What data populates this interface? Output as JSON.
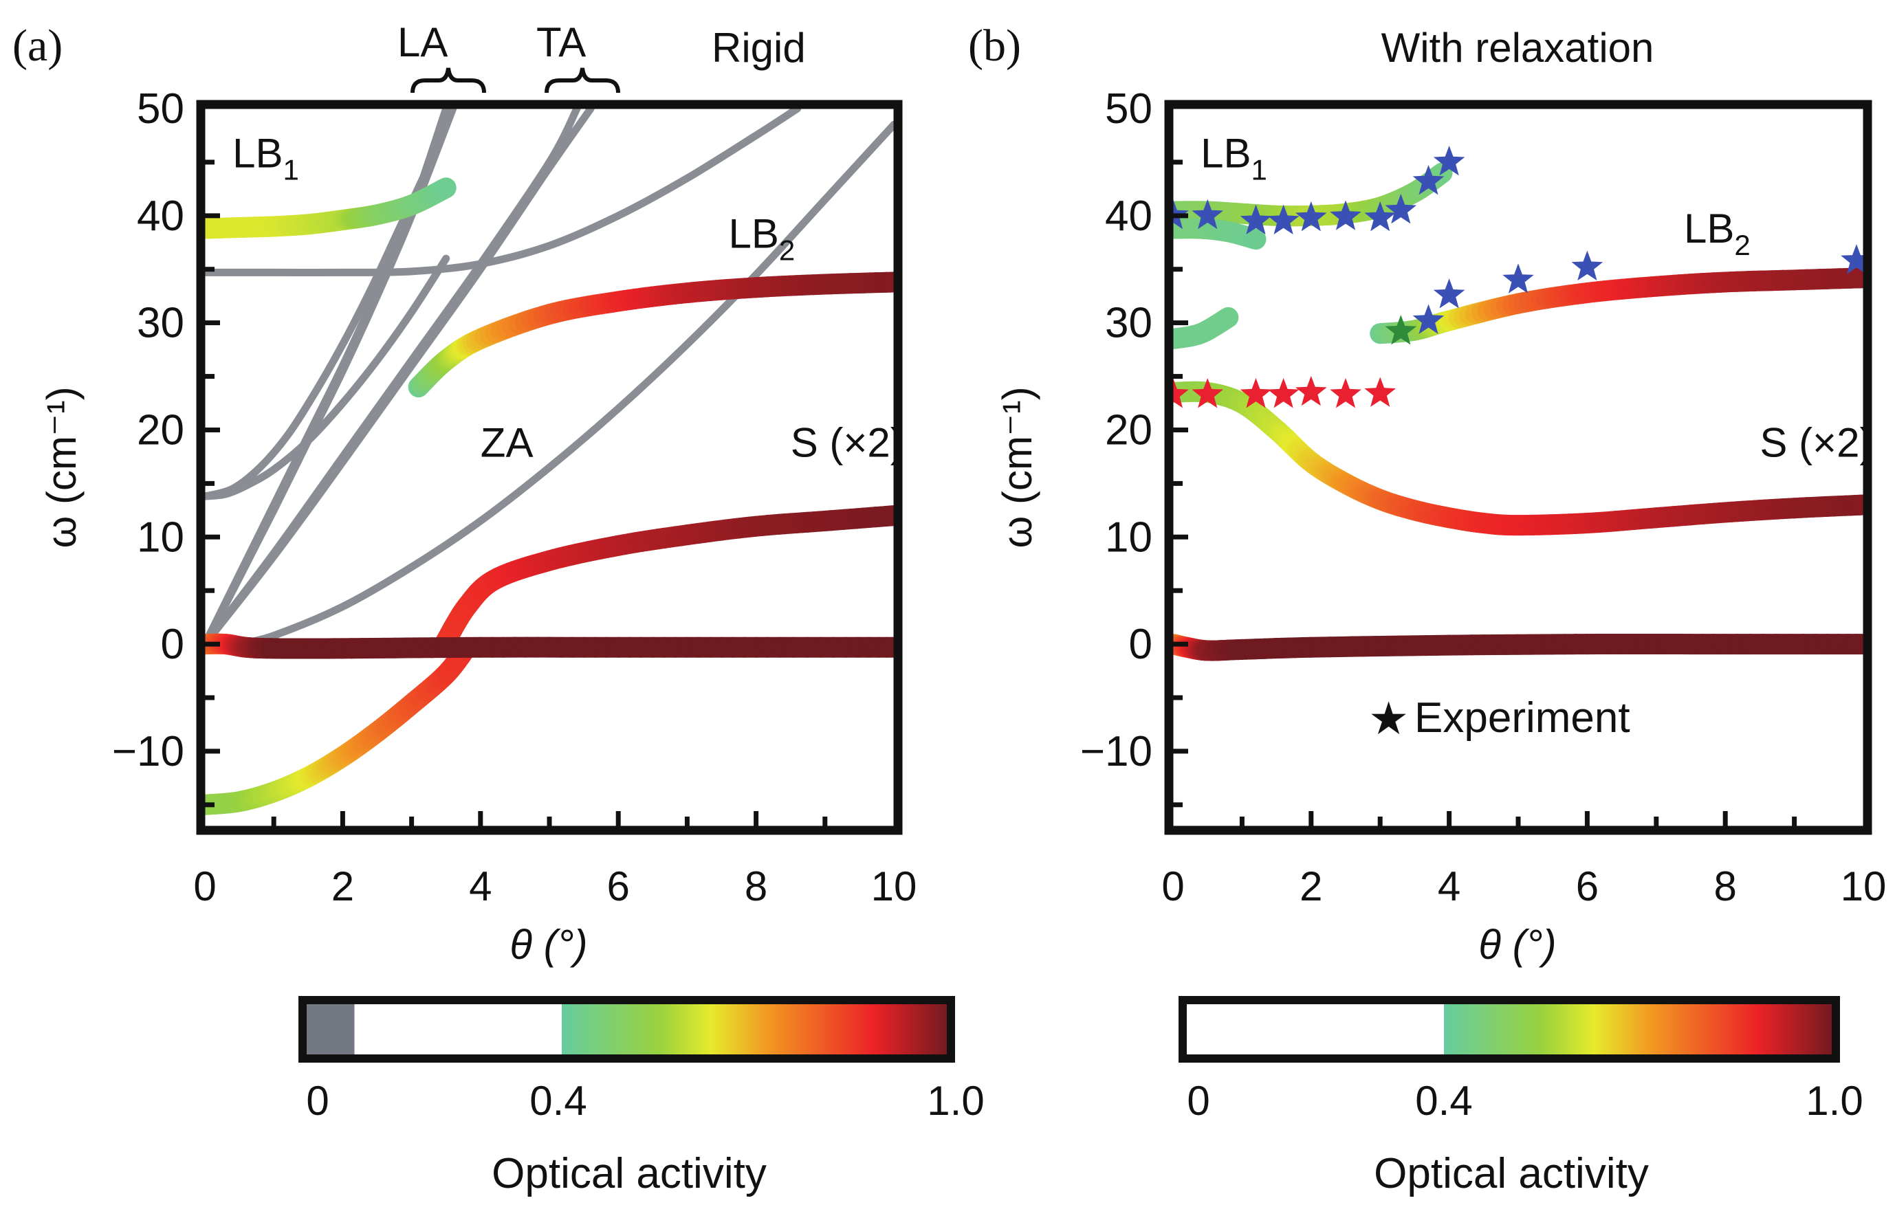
{
  "figure": {
    "panel_labels": [
      "(a)",
      "(b)"
    ]
  },
  "chart_data": [
    {
      "type": "line",
      "panel": "(a)",
      "title": "Rigid",
      "xlabel": "θ (°)",
      "ylabel": "ω (cm⁻¹)",
      "xlim": [
        0,
        10
      ],
      "ylim": [
        -17,
        50
      ],
      "xticks": [
        0,
        2,
        4,
        6,
        8,
        10
      ],
      "yticks": [
        -10,
        0,
        10,
        20,
        30,
        40,
        50
      ],
      "xtick_labels": [
        "0",
        "2",
        "4",
        "6",
        "8",
        "10"
      ],
      "ytick_labels": [
        "−10",
        "0",
        "10",
        "20",
        "30",
        "40",
        "50"
      ],
      "grid": false,
      "annotations": [
        {
          "text": "LB",
          "sub": "1",
          "x": 0.4,
          "y": 44.5
        },
        {
          "text": "LB",
          "sub": "2",
          "x": 7.6,
          "y": 37
        },
        {
          "text": "ZA",
          "x": 4.0,
          "y": 17.5
        },
        {
          "text": "S (×2)",
          "x": 8.5,
          "y": 17.5
        },
        {
          "text": "LA",
          "position": "above-frame",
          "x": 3.3
        },
        {
          "text": "TA",
          "position": "above-frame",
          "x": 5.3
        }
      ],
      "gray_series": [
        {
          "name": "LA-1",
          "x": [
            0,
            0.5,
            1,
            1.5,
            2,
            2.5,
            3,
            3.5
          ],
          "y": [
            0,
            6.5,
            13,
            19.5,
            26,
            33,
            40.5,
            50
          ]
        },
        {
          "name": "LA-2",
          "x": [
            0,
            0.5,
            1,
            1.5,
            2,
            2.5,
            3,
            3.6
          ],
          "y": [
            0,
            6.2,
            12.5,
            19,
            25.5,
            32.5,
            40,
            50
          ]
        },
        {
          "name": "TA-1",
          "x": [
            0,
            1,
            2,
            3,
            4,
            5,
            5.4
          ],
          "y": [
            0,
            8.5,
            17.5,
            26.5,
            35.5,
            45,
            50
          ]
        },
        {
          "name": "TA-2",
          "x": [
            0,
            1,
            2,
            3,
            4,
            5,
            5.6
          ],
          "y": [
            0,
            8.2,
            17,
            26,
            35,
            44.5,
            50
          ]
        },
        {
          "name": "ZA",
          "x": [
            0.5,
            1,
            2,
            3,
            4,
            5,
            6,
            7,
            8,
            9,
            10
          ],
          "y": [
            0,
            0.8,
            3.5,
            7.2,
            11.5,
            16.5,
            22,
            28,
            34.5,
            41.5,
            48.5
          ]
        },
        {
          "name": "optical-14",
          "x": [
            0,
            0.3,
            0.6,
            1,
            1.5,
            2,
            2.5,
            3,
            3.5
          ],
          "y": [
            13.8,
            14,
            14.8,
            16.3,
            19,
            22.5,
            26.5,
            31,
            36
          ]
        },
        {
          "name": "optical-14b",
          "x": [
            0,
            0.4,
            0.8,
            1.2,
            1.6,
            2,
            2.4,
            2.8,
            3.2
          ],
          "y": [
            13.8,
            14.5,
            16.5,
            19.5,
            23.5,
            28,
            33,
            38.5,
            44
          ]
        },
        {
          "name": "flat-34.7",
          "x": [
            0,
            1,
            2,
            3,
            4,
            5,
            6,
            7,
            8,
            8.6
          ],
          "y": [
            34.7,
            34.7,
            34.7,
            34.8,
            35.5,
            37.2,
            40,
            43.5,
            47.5,
            50
          ]
        }
      ],
      "colored_series": [
        {
          "name": "LB1",
          "x": [
            0,
            0.5,
            1,
            1.5,
            2,
            2.5,
            3,
            3.5
          ],
          "y": [
            38.8,
            38.9,
            39.0,
            39.2,
            39.6,
            40.1,
            41.0,
            42.6
          ],
          "optical_activity": [
            0.62,
            0.62,
            0.62,
            0.6,
            0.58,
            0.5,
            0.46,
            0.42
          ]
        },
        {
          "name": "LB2",
          "x": [
            3.1,
            3.5,
            4,
            5,
            6,
            7,
            8,
            9,
            10
          ],
          "y": [
            24,
            26.5,
            28.5,
            30.8,
            32,
            32.8,
            33.3,
            33.6,
            33.8
          ],
          "optical_activity": [
            0.42,
            0.55,
            0.68,
            0.8,
            0.87,
            0.92,
            0.95,
            0.97,
            0.98
          ]
        },
        {
          "name": "S-upper",
          "x": [
            3.5,
            3.8,
            4.2,
            5,
            6,
            7,
            8,
            9,
            10
          ],
          "y": [
            0.3,
            3.5,
            6.0,
            7.8,
            9.2,
            10.2,
            11.0,
            11.5,
            12.0
          ],
          "optical_activity": [
            0.85,
            0.86,
            0.87,
            0.9,
            0.93,
            0.95,
            0.97,
            0.98,
            0.99
          ]
        },
        {
          "name": "S-lower",
          "x": [
            0,
            0.5,
            1,
            1.5,
            2,
            2.5,
            3,
            3.5,
            3.8
          ],
          "y": [
            -15,
            -14.7,
            -13.8,
            -12.4,
            -10.5,
            -8.2,
            -5.6,
            -2.8,
            -0.3
          ],
          "optical_activity": [
            0.52,
            0.54,
            0.58,
            0.63,
            0.7,
            0.76,
            0.81,
            0.85,
            0.86
          ]
        },
        {
          "name": "S-zero",
          "x": [
            0,
            0.3,
            0.6,
            1,
            2,
            4,
            6,
            8,
            10
          ],
          "y": [
            0,
            0,
            -0.3,
            -0.4,
            -0.4,
            -0.3,
            -0.3,
            -0.3,
            -0.3
          ],
          "optical_activity": [
            0.75,
            0.85,
            0.95,
            1.0,
            1.0,
            1.0,
            1.0,
            1.0,
            1.0
          ]
        }
      ],
      "colorbar": {
        "label": "Optical activity",
        "ticks": [
          "0",
          "0.4",
          "1.0"
        ],
        "tick_values": [
          0,
          0.4,
          1.0
        ],
        "gray_below": 0.08
      }
    },
    {
      "type": "line",
      "panel": "(b)",
      "title": "With relaxation",
      "xlabel": "θ (°)",
      "ylabel": "ω (cm⁻¹)",
      "xlim": [
        0,
        10
      ],
      "ylim": [
        -17,
        50
      ],
      "xticks": [
        0,
        2,
        4,
        6,
        8,
        10
      ],
      "yticks": [
        -10,
        0,
        10,
        20,
        30,
        40,
        50
      ],
      "xtick_labels": [
        "0",
        "2",
        "4",
        "6",
        "8",
        "10"
      ],
      "ytick_labels": [
        "−10",
        "0",
        "10",
        "20",
        "30",
        "40",
        "50"
      ],
      "grid": false,
      "annotations": [
        {
          "text": "LB",
          "sub": "1",
          "x": 0.4,
          "y": 44.5
        },
        {
          "text": "LB",
          "sub": "2",
          "x": 7.4,
          "y": 37.5
        },
        {
          "text": "S (×2)",
          "x": 8.5,
          "y": 17.5
        }
      ],
      "legend": {
        "symbol": "★",
        "label": "Experiment",
        "position": "lower-center"
      },
      "colored_series": [
        {
          "name": "LB1-upper",
          "x": [
            0,
            0.5,
            1,
            1.5,
            2,
            2.5,
            3,
            3.5,
            3.9
          ],
          "y": [
            40.4,
            40.4,
            40.2,
            40.0,
            40.0,
            40.2,
            40.8,
            42.2,
            44.0
          ],
          "optical_activity": [
            0.48,
            0.5,
            0.52,
            0.55,
            0.58,
            0.57,
            0.53,
            0.48,
            0.44
          ]
        },
        {
          "name": "LB1-lower",
          "x": [
            0,
            0.4,
            0.8,
            1.2
          ],
          "y": [
            38.8,
            38.8,
            38.5,
            37.8
          ],
          "optical_activity": [
            0.45,
            0.45,
            0.43,
            0.42
          ]
        },
        {
          "name": "LB-30",
          "x": [
            0,
            0.4,
            0.8
          ],
          "y": [
            28.5,
            29,
            30.5
          ],
          "optical_activity": [
            0.43,
            0.43,
            0.43
          ]
        },
        {
          "name": "LB2",
          "x": [
            3.0,
            3.5,
            4,
            5,
            6,
            7,
            8,
            9,
            10
          ],
          "y": [
            29,
            29.3,
            30.2,
            31.8,
            32.8,
            33.4,
            33.8,
            34.0,
            34.2
          ],
          "optical_activity": [
            0.42,
            0.5,
            0.62,
            0.78,
            0.86,
            0.9,
            0.94,
            0.96,
            0.97
          ]
        },
        {
          "name": "S-upper",
          "x": [
            0,
            0.5,
            1,
            1.5,
            2,
            2.5,
            3,
            3.5,
            4,
            4.5,
            5,
            6,
            7,
            8,
            9,
            10
          ],
          "y": [
            23.5,
            23.5,
            22.5,
            20,
            17,
            15,
            13.5,
            12.5,
            11.8,
            11.3,
            11.1,
            11.3,
            11.8,
            12.3,
            12.7,
            13.0
          ],
          "optical_activity": [
            0.52,
            0.54,
            0.56,
            0.6,
            0.66,
            0.72,
            0.78,
            0.82,
            0.85,
            0.87,
            0.88,
            0.9,
            0.93,
            0.95,
            0.97,
            0.98
          ]
        },
        {
          "name": "S-zero",
          "x": [
            0,
            0.2,
            0.5,
            1,
            2,
            4,
            6,
            8,
            10
          ],
          "y": [
            0,
            -0.3,
            -0.6,
            -0.5,
            -0.3,
            -0.1,
            0,
            0,
            0
          ],
          "optical_activity": [
            0.7,
            0.85,
            0.97,
            1.0,
            1.0,
            1.0,
            1.0,
            1.0,
            1.0
          ]
        }
      ],
      "experiment_points": [
        {
          "color": "#3a50b4",
          "x": [
            0,
            0.5,
            1.2,
            1.6,
            2.0,
            2.5,
            3.0,
            3.3,
            3.7,
            4.0
          ],
          "y": [
            40,
            40,
            39.5,
            39.5,
            39.8,
            39.9,
            39.8,
            40.5,
            43.2,
            45.0
          ]
        },
        {
          "color": "#3a50b4",
          "x": [
            3.7,
            4.0,
            5.0,
            6.0,
            9.9
          ],
          "y": [
            30.2,
            32.6,
            34.0,
            35.2,
            35.8
          ]
        },
        {
          "color": "#2e8b3a",
          "x": [
            3.3
          ],
          "y": [
            29.2
          ]
        },
        {
          "color": "#e8202f",
          "x": [
            0,
            0.5,
            1.2,
            1.6,
            2.0,
            2.5,
            3.0
          ],
          "y": [
            23.3,
            23.3,
            23.3,
            23.3,
            23.5,
            23.3,
            23.4
          ]
        }
      ],
      "colorbar": {
        "label": "Optical activity",
        "ticks": [
          "0",
          "0.4",
          "1.0"
        ],
        "tick_values": [
          0,
          0.4,
          1.0
        ],
        "gray_below": 0
      }
    }
  ],
  "colors": {
    "gray_curve": "#8a8d93",
    "gray_colorbar": "#737882",
    "frame": "#111111",
    "colormap": [
      {
        "v": 0.4,
        "c": "#66cc9e"
      },
      {
        "v": 0.55,
        "c": "#9ad23e"
      },
      {
        "v": 0.63,
        "c": "#e5ea2c"
      },
      {
        "v": 0.72,
        "c": "#f29622"
      },
      {
        "v": 0.88,
        "c": "#ec2227"
      },
      {
        "v": 1.0,
        "c": "#6e1a20"
      }
    ]
  }
}
